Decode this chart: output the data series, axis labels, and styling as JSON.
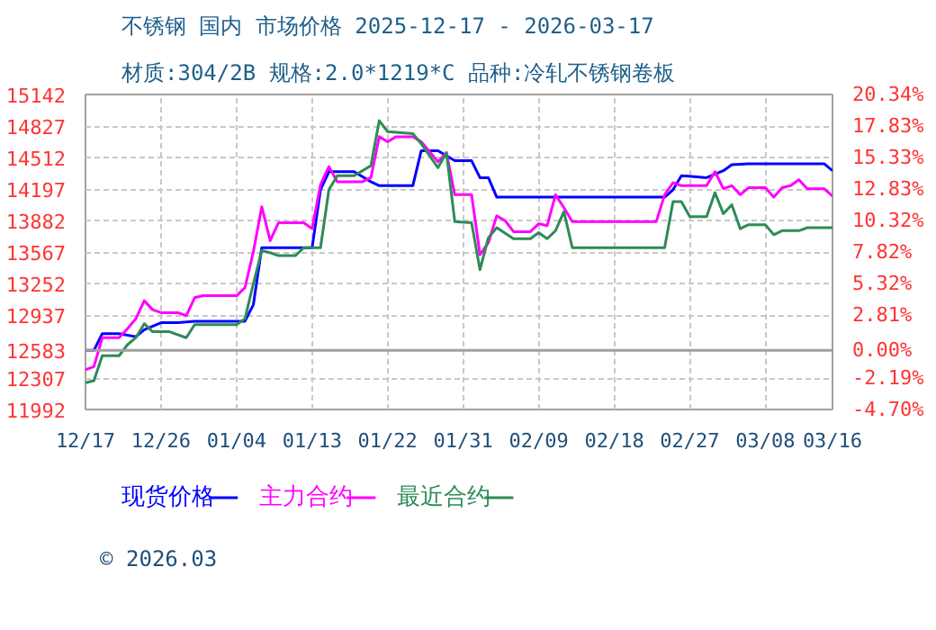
{
  "chart_data": {
    "type": "line",
    "title": "不锈钢 国内 市场价格 2025-12-17 - 2026-03-17",
    "subtitle": "材质:304/2B 规格:2.0*1219*C 品种:冷轧不锈钢卷板",
    "annotations": [
      "© 2026.03"
    ],
    "xlim": [
      "2025-12-17",
      "2026-03-16"
    ],
    "xticks": [
      {
        "value": "2025-12-17",
        "label": "12/17"
      },
      {
        "value": "2025-12-26",
        "label": "12/26"
      },
      {
        "value": "2026-01-04",
        "label": "01/04"
      },
      {
        "value": "2026-01-13",
        "label": "01/13"
      },
      {
        "value": "2026-01-22",
        "label": "01/22"
      },
      {
        "value": "2026-01-31",
        "label": "01/31"
      },
      {
        "value": "2026-02-09",
        "label": "02/09"
      },
      {
        "value": "2026-02-18",
        "label": "02/18"
      },
      {
        "value": "2026-02-27",
        "label": "02/27"
      },
      {
        "value": "2026-03-08",
        "label": "03/08"
      },
      {
        "value": "2026-03-16",
        "label": "03/16"
      }
    ],
    "ylim": [
      11992,
      15142
    ],
    "yticks": [
      11992,
      12307,
      12583,
      12937,
      13252,
      13567,
      13882,
      14197,
      14512,
      14827,
      15142
    ],
    "y2lim": [
      -4.7,
      20.34
    ],
    "y2ticks": [
      {
        "value": -4.7,
        "label": "-4.70%"
      },
      {
        "value": -2.19,
        "label": "-2.19%"
      },
      {
        "value": 0,
        "label": "0.00%"
      },
      {
        "value": 2.81,
        "label": "2.81%"
      },
      {
        "value": 5.32,
        "label": "5.32%"
      },
      {
        "value": 7.82,
        "label": "7.82%"
      },
      {
        "value": 10.32,
        "label": "10.32%"
      },
      {
        "value": 12.83,
        "label": "12.83%"
      },
      {
        "value": 15.33,
        "label": "15.33%"
      },
      {
        "value": 17.83,
        "label": "17.83%"
      },
      {
        "value": 20.34,
        "label": "20.34%"
      }
    ],
    "ref_lines": [
      {
        "axis": "y",
        "value": 12583,
        "label": null,
        "color": "#a0a0a0"
      }
    ],
    "grid": true,
    "legend": "bottom",
    "line_style": "solid",
    "marker": "none",
    "series": [
      {
        "name": "现货价格",
        "color": "#0000ff",
        "x": [
          "2025-12-17",
          "2025-12-18",
          "2025-12-19",
          "2025-12-21",
          "2025-12-23",
          "2025-12-24",
          "2025-12-26",
          "2025-12-28",
          "2025-12-30",
          "2026-01-05",
          "2026-01-06",
          "2026-01-07",
          "2026-01-13",
          "2026-01-14",
          "2026-01-15",
          "2026-01-18",
          "2026-01-20",
          "2026-01-21",
          "2026-01-25",
          "2026-01-26",
          "2026-01-28",
          "2026-01-30",
          "2026-02-01",
          "2026-02-02",
          "2026-02-03",
          "2026-02-04",
          "2026-02-24",
          "2026-02-25",
          "2026-02-26",
          "2026-03-01",
          "2026-03-03",
          "2026-03-04",
          "2026-03-06",
          "2026-03-15",
          "2026-03-16"
        ],
        "values": [
          12583,
          12583,
          12750,
          12750,
          12720,
          12790,
          12860,
          12860,
          12875,
          12875,
          13040,
          13610,
          13610,
          14190,
          14370,
          14370,
          14270,
          14230,
          14230,
          14580,
          14580,
          14480,
          14480,
          14310,
          14310,
          14115,
          14115,
          14190,
          14330,
          14310,
          14380,
          14440,
          14450,
          14450,
          14380
        ]
      },
      {
        "name": "主力合约",
        "color": "#ff00ff",
        "x": [
          "2025-12-17",
          "2025-12-18",
          "2025-12-19",
          "2025-12-21",
          "2025-12-22",
          "2025-12-23",
          "2025-12-24",
          "2025-12-25",
          "2025-12-26",
          "2025-12-28",
          "2025-12-29",
          "2025-12-30",
          "2025-12-31",
          "2026-01-04",
          "2026-01-05",
          "2026-01-06",
          "2026-01-07",
          "2026-01-08",
          "2026-01-09",
          "2026-01-12",
          "2026-01-13",
          "2026-01-14",
          "2026-01-15",
          "2026-01-16",
          "2026-01-19",
          "2026-01-20",
          "2026-01-21",
          "2026-01-22",
          "2026-01-23",
          "2026-01-25",
          "2026-01-26",
          "2026-01-28",
          "2026-01-29",
          "2026-01-30",
          "2026-02-01",
          "2026-02-02",
          "2026-02-03",
          "2026-02-04",
          "2026-02-05",
          "2026-02-06",
          "2026-02-08",
          "2026-02-09",
          "2026-02-10",
          "2026-02-11",
          "2026-02-12",
          "2026-02-13",
          "2026-02-23",
          "2026-02-24",
          "2026-02-25",
          "2026-02-26",
          "2026-03-01",
          "2026-03-02",
          "2026-03-03",
          "2026-03-04",
          "2026-03-05",
          "2026-03-06",
          "2026-03-08",
          "2026-03-09",
          "2026-03-10",
          "2026-03-11",
          "2026-03-12",
          "2026-03-13",
          "2026-03-15",
          "2026-03-16"
        ],
        "values": [
          12390,
          12420,
          12710,
          12710,
          12800,
          12900,
          13080,
          12990,
          12960,
          12960,
          12930,
          13110,
          13130,
          13130,
          13210,
          13570,
          14020,
          13680,
          13860,
          13860,
          13800,
          14240,
          14420,
          14270,
          14270,
          14310,
          14720,
          14670,
          14720,
          14720,
          14670,
          14470,
          14560,
          14140,
          14140,
          13540,
          13660,
          13930,
          13880,
          13770,
          13770,
          13850,
          13830,
          14140,
          14010,
          13870,
          13870,
          14140,
          14260,
          14230,
          14230,
          14370,
          14200,
          14230,
          14140,
          14210,
          14210,
          14115,
          14210,
          14230,
          14290,
          14200,
          14200,
          14125
        ]
      },
      {
        "name": "最近合约",
        "color": "#2e8b57",
        "x": [
          "2025-12-17",
          "2025-12-18",
          "2025-12-19",
          "2025-12-21",
          "2025-12-22",
          "2025-12-23",
          "2025-12-24",
          "2025-12-25",
          "2025-12-27",
          "2025-12-29",
          "2025-12-30",
          "2026-01-04",
          "2026-01-05",
          "2026-01-06",
          "2026-01-07",
          "2026-01-08",
          "2026-01-09",
          "2026-01-11",
          "2026-01-12",
          "2026-01-14",
          "2026-01-15",
          "2026-01-16",
          "2026-01-18",
          "2026-01-20",
          "2026-01-21",
          "2026-01-22",
          "2026-01-25",
          "2026-01-26",
          "2026-01-28",
          "2026-01-29",
          "2026-01-30",
          "2026-02-01",
          "2026-02-02",
          "2026-02-03",
          "2026-02-04",
          "2026-02-06",
          "2026-02-08",
          "2026-02-09",
          "2026-02-10",
          "2026-02-11",
          "2026-02-12",
          "2026-02-13",
          "2026-02-24",
          "2026-02-25",
          "2026-02-26",
          "2026-02-27",
          "2026-03-01",
          "2026-03-02",
          "2026-03-03",
          "2026-03-04",
          "2026-03-05",
          "2026-03-06",
          "2026-03-08",
          "2026-03-09",
          "2026-03-10",
          "2026-03-12",
          "2026-03-13",
          "2026-03-16"
        ],
        "values": [
          12260,
          12280,
          12530,
          12530,
          12640,
          12710,
          12850,
          12770,
          12770,
          12710,
          12840,
          12840,
          12900,
          13250,
          13580,
          13560,
          13530,
          13530,
          13610,
          13610,
          14190,
          14330,
          14330,
          14430,
          14880,
          14770,
          14750,
          14650,
          14410,
          14560,
          13870,
          13860,
          13390,
          13710,
          13810,
          13700,
          13700,
          13760,
          13700,
          13780,
          13970,
          13610,
          13610,
          14070,
          14070,
          13920,
          13920,
          14160,
          13950,
          14040,
          13800,
          13840,
          13840,
          13740,
          13780,
          13780,
          13810,
          13810
        ]
      }
    ]
  }
}
